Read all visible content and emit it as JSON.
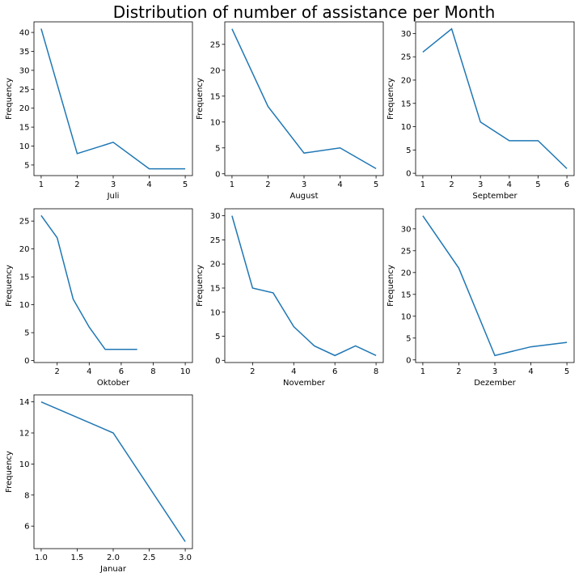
{
  "figure_title": "Distribution of number of assistance per Month",
  "colors": {
    "line": "#1f77b4"
  },
  "chart_data": [
    {
      "type": "line",
      "xlabel": "Juli",
      "ylabel": "Frequency",
      "x": [
        1,
        2,
        3,
        4,
        5
      ],
      "y": [
        41,
        8,
        11,
        4,
        4
      ],
      "xlim": [
        0.8,
        5.2
      ],
      "ylim": [
        2.2,
        42.8
      ],
      "xticks": [
        1,
        2,
        3,
        4,
        5
      ],
      "xtick_labels": [
        "1",
        "2",
        "3",
        "4",
        "5"
      ],
      "yticks": [
        5,
        10,
        15,
        20,
        25,
        30,
        35,
        40
      ],
      "ytick_labels": [
        "5",
        "10",
        "15",
        "20",
        "25",
        "30",
        "35",
        "40"
      ]
    },
    {
      "type": "line",
      "xlabel": "August",
      "ylabel": "Frequency",
      "x": [
        1,
        2,
        3,
        4,
        5
      ],
      "y": [
        28,
        13,
        4,
        5,
        1
      ],
      "xlim": [
        0.8,
        5.2
      ],
      "ylim": [
        -0.35,
        29.35
      ],
      "xticks": [
        1,
        2,
        3,
        4,
        5
      ],
      "xtick_labels": [
        "1",
        "2",
        "3",
        "4",
        "5"
      ],
      "yticks": [
        0,
        5,
        10,
        15,
        20,
        25
      ],
      "ytick_labels": [
        "0",
        "5",
        "10",
        "15",
        "20",
        "25"
      ]
    },
    {
      "type": "line",
      "xlabel": "September",
      "ylabel": "Frequency",
      "x": [
        1,
        2,
        3,
        4,
        5,
        6
      ],
      "y": [
        26,
        31,
        11,
        7,
        7,
        1
      ],
      "xlim": [
        0.75,
        6.25
      ],
      "ylim": [
        -0.5,
        32.5
      ],
      "xticks": [
        1,
        2,
        3,
        4,
        5,
        6
      ],
      "xtick_labels": [
        "1",
        "2",
        "3",
        "4",
        "5",
        "6"
      ],
      "yticks": [
        0,
        5,
        10,
        15,
        20,
        25,
        30
      ],
      "ytick_labels": [
        "0",
        "5",
        "10",
        "15",
        "20",
        "25",
        "30"
      ]
    },
    {
      "type": "line",
      "xlabel": "Oktober",
      "ylabel": "Frequency",
      "x": [
        1,
        2,
        3,
        4,
        5,
        6,
        7
      ],
      "y": [
        26,
        22,
        11,
        6,
        2,
        2,
        2
      ],
      "xlim": [
        0.55,
        10.45
      ],
      "ylim": [
        -0.35,
        27.2
      ],
      "xticks": [
        2,
        4,
        6,
        8,
        10
      ],
      "xtick_labels": [
        "2",
        "4",
        "6",
        "8",
        "10"
      ],
      "yticks": [
        0,
        5,
        10,
        15,
        20,
        25
      ],
      "ytick_labels": [
        "0",
        "5",
        "10",
        "15",
        "20",
        "25"
      ]
    },
    {
      "type": "line",
      "xlabel": "November",
      "ylabel": "Frequency",
      "x": [
        1,
        2,
        3,
        4,
        5,
        6,
        7,
        8
      ],
      "y": [
        30,
        15,
        14,
        7,
        3,
        1,
        3,
        1
      ],
      "xlim": [
        0.65,
        8.35
      ],
      "ylim": [
        -0.45,
        31.45
      ],
      "xticks": [
        2,
        4,
        6,
        8
      ],
      "xtick_labels": [
        "2",
        "4",
        "6",
        "8"
      ],
      "yticks": [
        0,
        5,
        10,
        15,
        20,
        25,
        30
      ],
      "ytick_labels": [
        "0",
        "5",
        "10",
        "15",
        "20",
        "25",
        "30"
      ]
    },
    {
      "type": "line",
      "xlabel": "Dezember",
      "ylabel": "Frequency",
      "x": [
        1,
        2,
        3,
        4,
        5
      ],
      "y": [
        33,
        21,
        1,
        3,
        4
      ],
      "xlim": [
        0.8,
        5.2
      ],
      "ylim": [
        -0.6,
        34.6
      ],
      "xticks": [
        1,
        2,
        3,
        4,
        5
      ],
      "xtick_labels": [
        "1",
        "2",
        "3",
        "4",
        "5"
      ],
      "yticks": [
        0,
        5,
        10,
        15,
        20,
        25,
        30
      ],
      "ytick_labels": [
        "0",
        "5",
        "10",
        "15",
        "20",
        "25",
        "30"
      ]
    },
    {
      "type": "line",
      "xlabel": "Januar",
      "ylabel": "Frequency",
      "x": [
        1,
        2,
        3
      ],
      "y": [
        14,
        12,
        5
      ],
      "xlim": [
        0.9,
        3.1
      ],
      "ylim": [
        4.55,
        14.45
      ],
      "xticks": [
        1.0,
        1.5,
        2.0,
        2.5,
        3.0
      ],
      "xtick_labels": [
        "1.0",
        "1.5",
        "2.0",
        "2.5",
        "3.0"
      ],
      "yticks": [
        6,
        8,
        10,
        12,
        14
      ],
      "ytick_labels": [
        "6",
        "8",
        "10",
        "12",
        "14"
      ]
    }
  ]
}
